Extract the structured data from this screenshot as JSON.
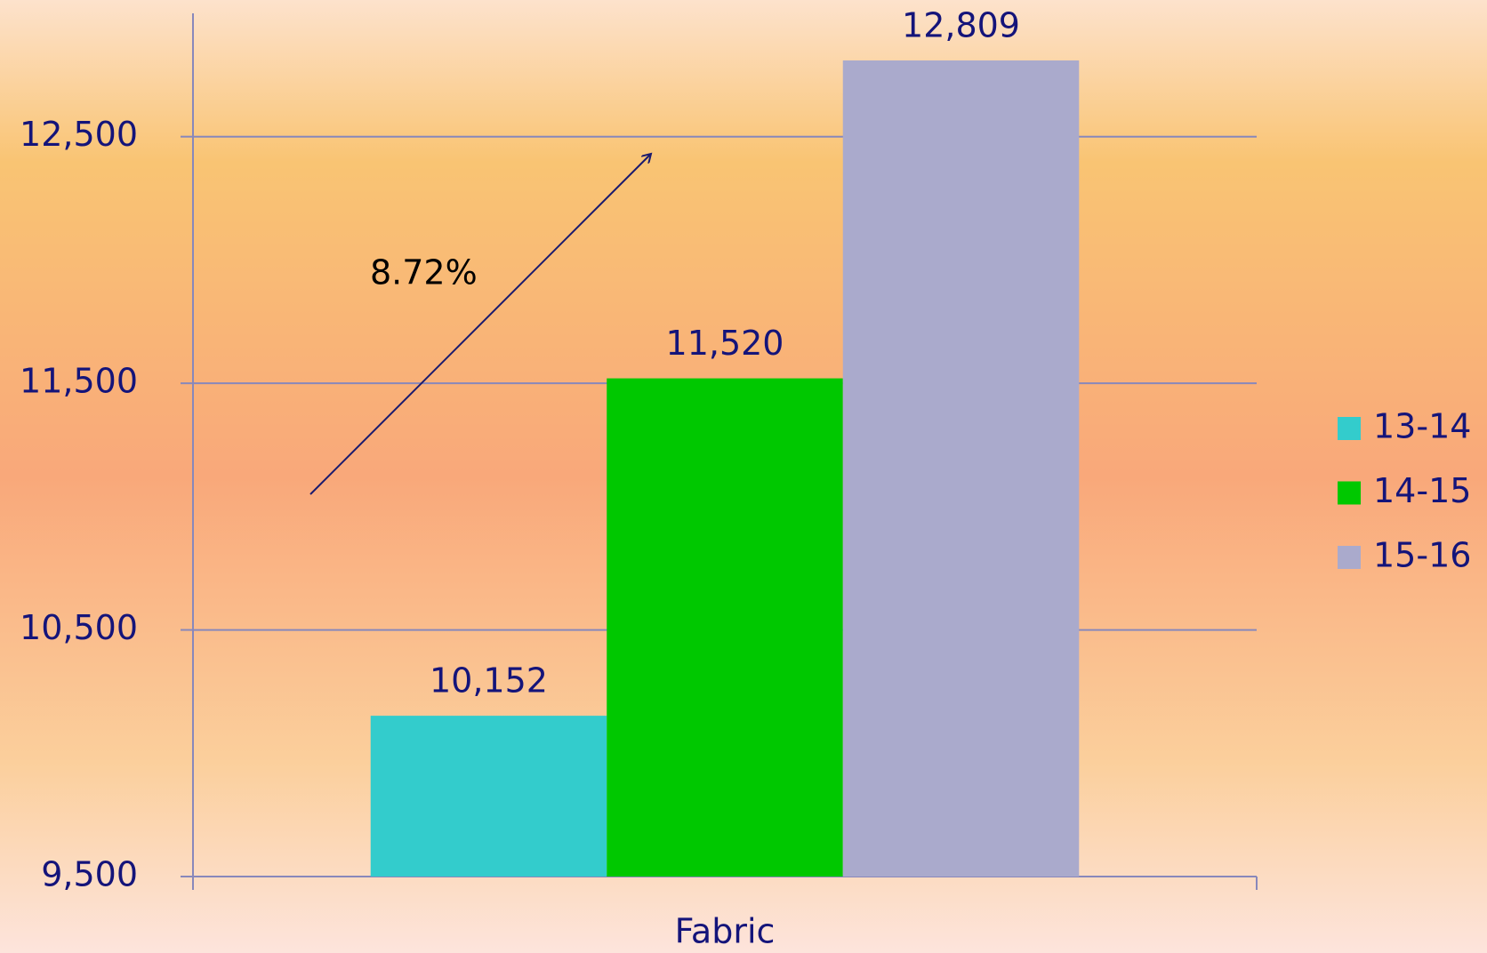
{
  "chart_data": {
    "type": "bar",
    "categories": [
      "Fabric"
    ],
    "series": [
      {
        "name": "13-14",
        "color": "#33cccc",
        "values": [
          10152
        ],
        "value_labels": [
          "10,152"
        ]
      },
      {
        "name": "14-15",
        "color": "#00c800",
        "values": [
          11520
        ],
        "value_labels": [
          "11,520"
        ]
      },
      {
        "name": "15-16",
        "color": "#aaaacc",
        "values": [
          12809
        ],
        "value_labels": [
          "12,809"
        ]
      }
    ],
    "ylim": [
      9500,
      13000
    ],
    "yticks": [
      {
        "value": 9500,
        "label": "9,500"
      },
      {
        "value": 10500,
        "label": "10,500"
      },
      {
        "value": 11500,
        "label": "11,500"
      },
      {
        "value": 12500,
        "label": "12,500"
      }
    ],
    "grid": true,
    "legend": "right",
    "annotation": "8.72%"
  }
}
